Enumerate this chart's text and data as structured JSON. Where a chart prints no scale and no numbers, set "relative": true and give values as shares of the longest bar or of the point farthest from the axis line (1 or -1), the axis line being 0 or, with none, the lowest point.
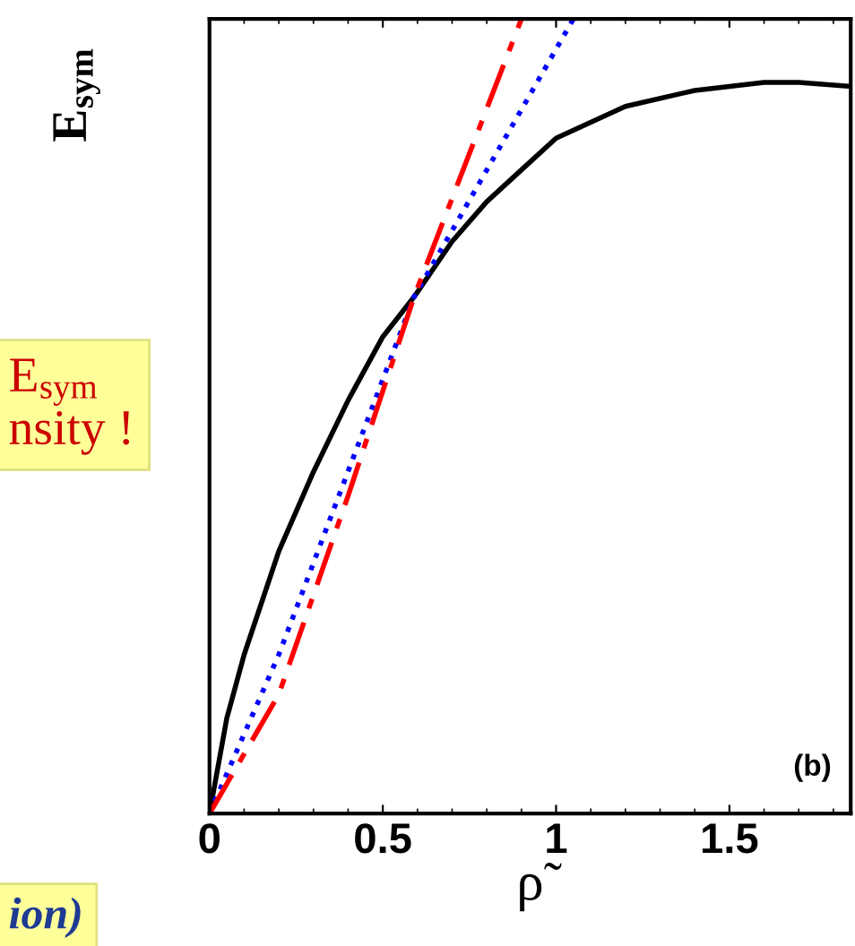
{
  "chart_data": {
    "type": "line",
    "relative": true,
    "ylabel": "E$_{sym}$",
    "xlabel": "ρ̃",
    "xlim": [
      0,
      1.85
    ],
    "xticks": [
      0,
      0.5,
      1,
      1.5
    ],
    "grid": false,
    "series": [
      {
        "color": "#000000",
        "line_style": "solid",
        "x": [
          0,
          0.05,
          0.1,
          0.2,
          0.3,
          0.4,
          0.5,
          0.59,
          0.7,
          0.8,
          0.9,
          1.0,
          1.2,
          1.4,
          1.6,
          1.7,
          1.85
        ],
        "values": [
          0,
          0.12,
          0.2,
          0.33,
          0.43,
          0.52,
          0.6,
          0.65,
          0.72,
          0.77,
          0.81,
          0.85,
          0.89,
          0.91,
          0.92,
          0.92,
          0.915
        ]
      },
      {
        "color": "#0000ff",
        "line_style": "dotted",
        "x": [
          0,
          0.2,
          0.59,
          1.05
        ],
        "values": [
          0,
          0.2,
          0.65,
          1
        ]
      },
      {
        "color": "#ff0000",
        "line_style": "dashdot",
        "x": [
          0,
          0.2,
          0.4,
          0.59,
          0.9
        ],
        "values": [
          0,
          0.15,
          0.4,
          0.65,
          1
        ]
      }
    ],
    "annotations": [
      "(b)",
      "E$_{sym}$",
      "nsity !",
      "ion)"
    ]
  }
}
